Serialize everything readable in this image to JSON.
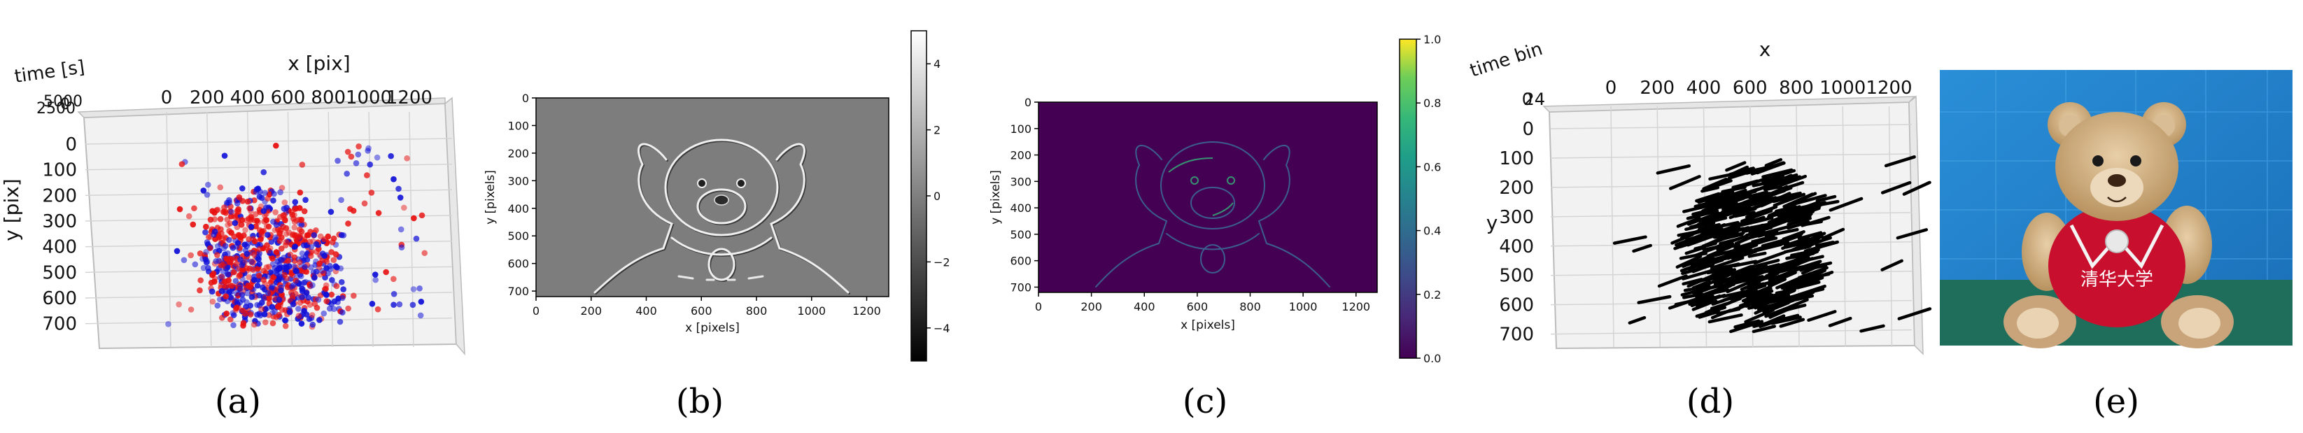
{
  "panels": [
    {
      "caption": "(a)"
    },
    {
      "caption": "(b)"
    },
    {
      "caption": "(c)"
    },
    {
      "caption": "(d)"
    },
    {
      "caption": "(e)"
    }
  ],
  "chart_data": [
    {
      "id": "a",
      "type": "scatter",
      "title": "",
      "xlabel": "x [pix]",
      "ylabel": "y [pix]",
      "zlabel": "time [s]",
      "xticks": [
        "0",
        "200",
        "400",
        "600",
        "800",
        "1000",
        "1200"
      ],
      "yticks": [
        "0",
        "100",
        "200",
        "300",
        "400",
        "500",
        "600",
        "700"
      ],
      "zticks": [
        "5000",
        "2500",
        "0"
      ],
      "xlim": [
        0,
        1280
      ],
      "ylim": [
        0,
        720
      ],
      "series": [
        {
          "color": "#e81010",
          "values": []
        },
        {
          "color": "#1010d8",
          "values": []
        }
      ],
      "grid": true
    },
    {
      "id": "b",
      "type": "heatmap",
      "title": "",
      "xlabel": "x [pixels]",
      "ylabel": "y [pixels]",
      "xticks": [
        "0",
        "200",
        "400",
        "600",
        "800",
        "1000",
        "1200"
      ],
      "yticks": [
        "0",
        "100",
        "200",
        "300",
        "400",
        "500",
        "600",
        "700"
      ],
      "xlim": [
        0,
        1280
      ],
      "ylim": [
        720,
        0
      ],
      "colorbar": {
        "ticks": [
          "4",
          "2",
          "0",
          "−2",
          "−4"
        ],
        "range": [
          -5,
          5
        ],
        "cmap": "gray"
      }
    },
    {
      "id": "c",
      "type": "heatmap",
      "title": "",
      "xlabel": "x [pixels]",
      "ylabel": "y [pixels]",
      "xticks": [
        "0",
        "200",
        "400",
        "600",
        "800",
        "1000",
        "1200"
      ],
      "yticks": [
        "0",
        "100",
        "200",
        "300",
        "400",
        "500",
        "600",
        "700"
      ],
      "xlim": [
        0,
        1280
      ],
      "ylim": [
        720,
        0
      ],
      "colorbar": {
        "ticks": [
          "1.0",
          "0.8",
          "0.6",
          "0.4",
          "0.2",
          "0.0"
        ],
        "range": [
          0,
          1
        ],
        "cmap": "viridis"
      }
    },
    {
      "id": "d",
      "type": "scatter",
      "title": "",
      "xlabel": "x",
      "ylabel": "y",
      "zlabel": "time bin",
      "xticks": [
        "0",
        "200",
        "400",
        "600",
        "800",
        "1000",
        "1200"
      ],
      "yticks": [
        "0",
        "100",
        "200",
        "300",
        "400",
        "500",
        "600",
        "700"
      ],
      "zticks": [
        "24",
        "0"
      ],
      "xlim": [
        0,
        1280
      ],
      "ylim": [
        0,
        720
      ],
      "grid": true
    }
  ],
  "colors": {
    "red_events": "#e81010",
    "blue_events": "#1010d8",
    "viridis_dark": "#440154",
    "photo_wall": "#1e7fc8",
    "photo_table": "#1f6e5c"
  },
  "photo": {
    "shirt_text": "清华大学",
    "subject": "teddy-bear"
  }
}
